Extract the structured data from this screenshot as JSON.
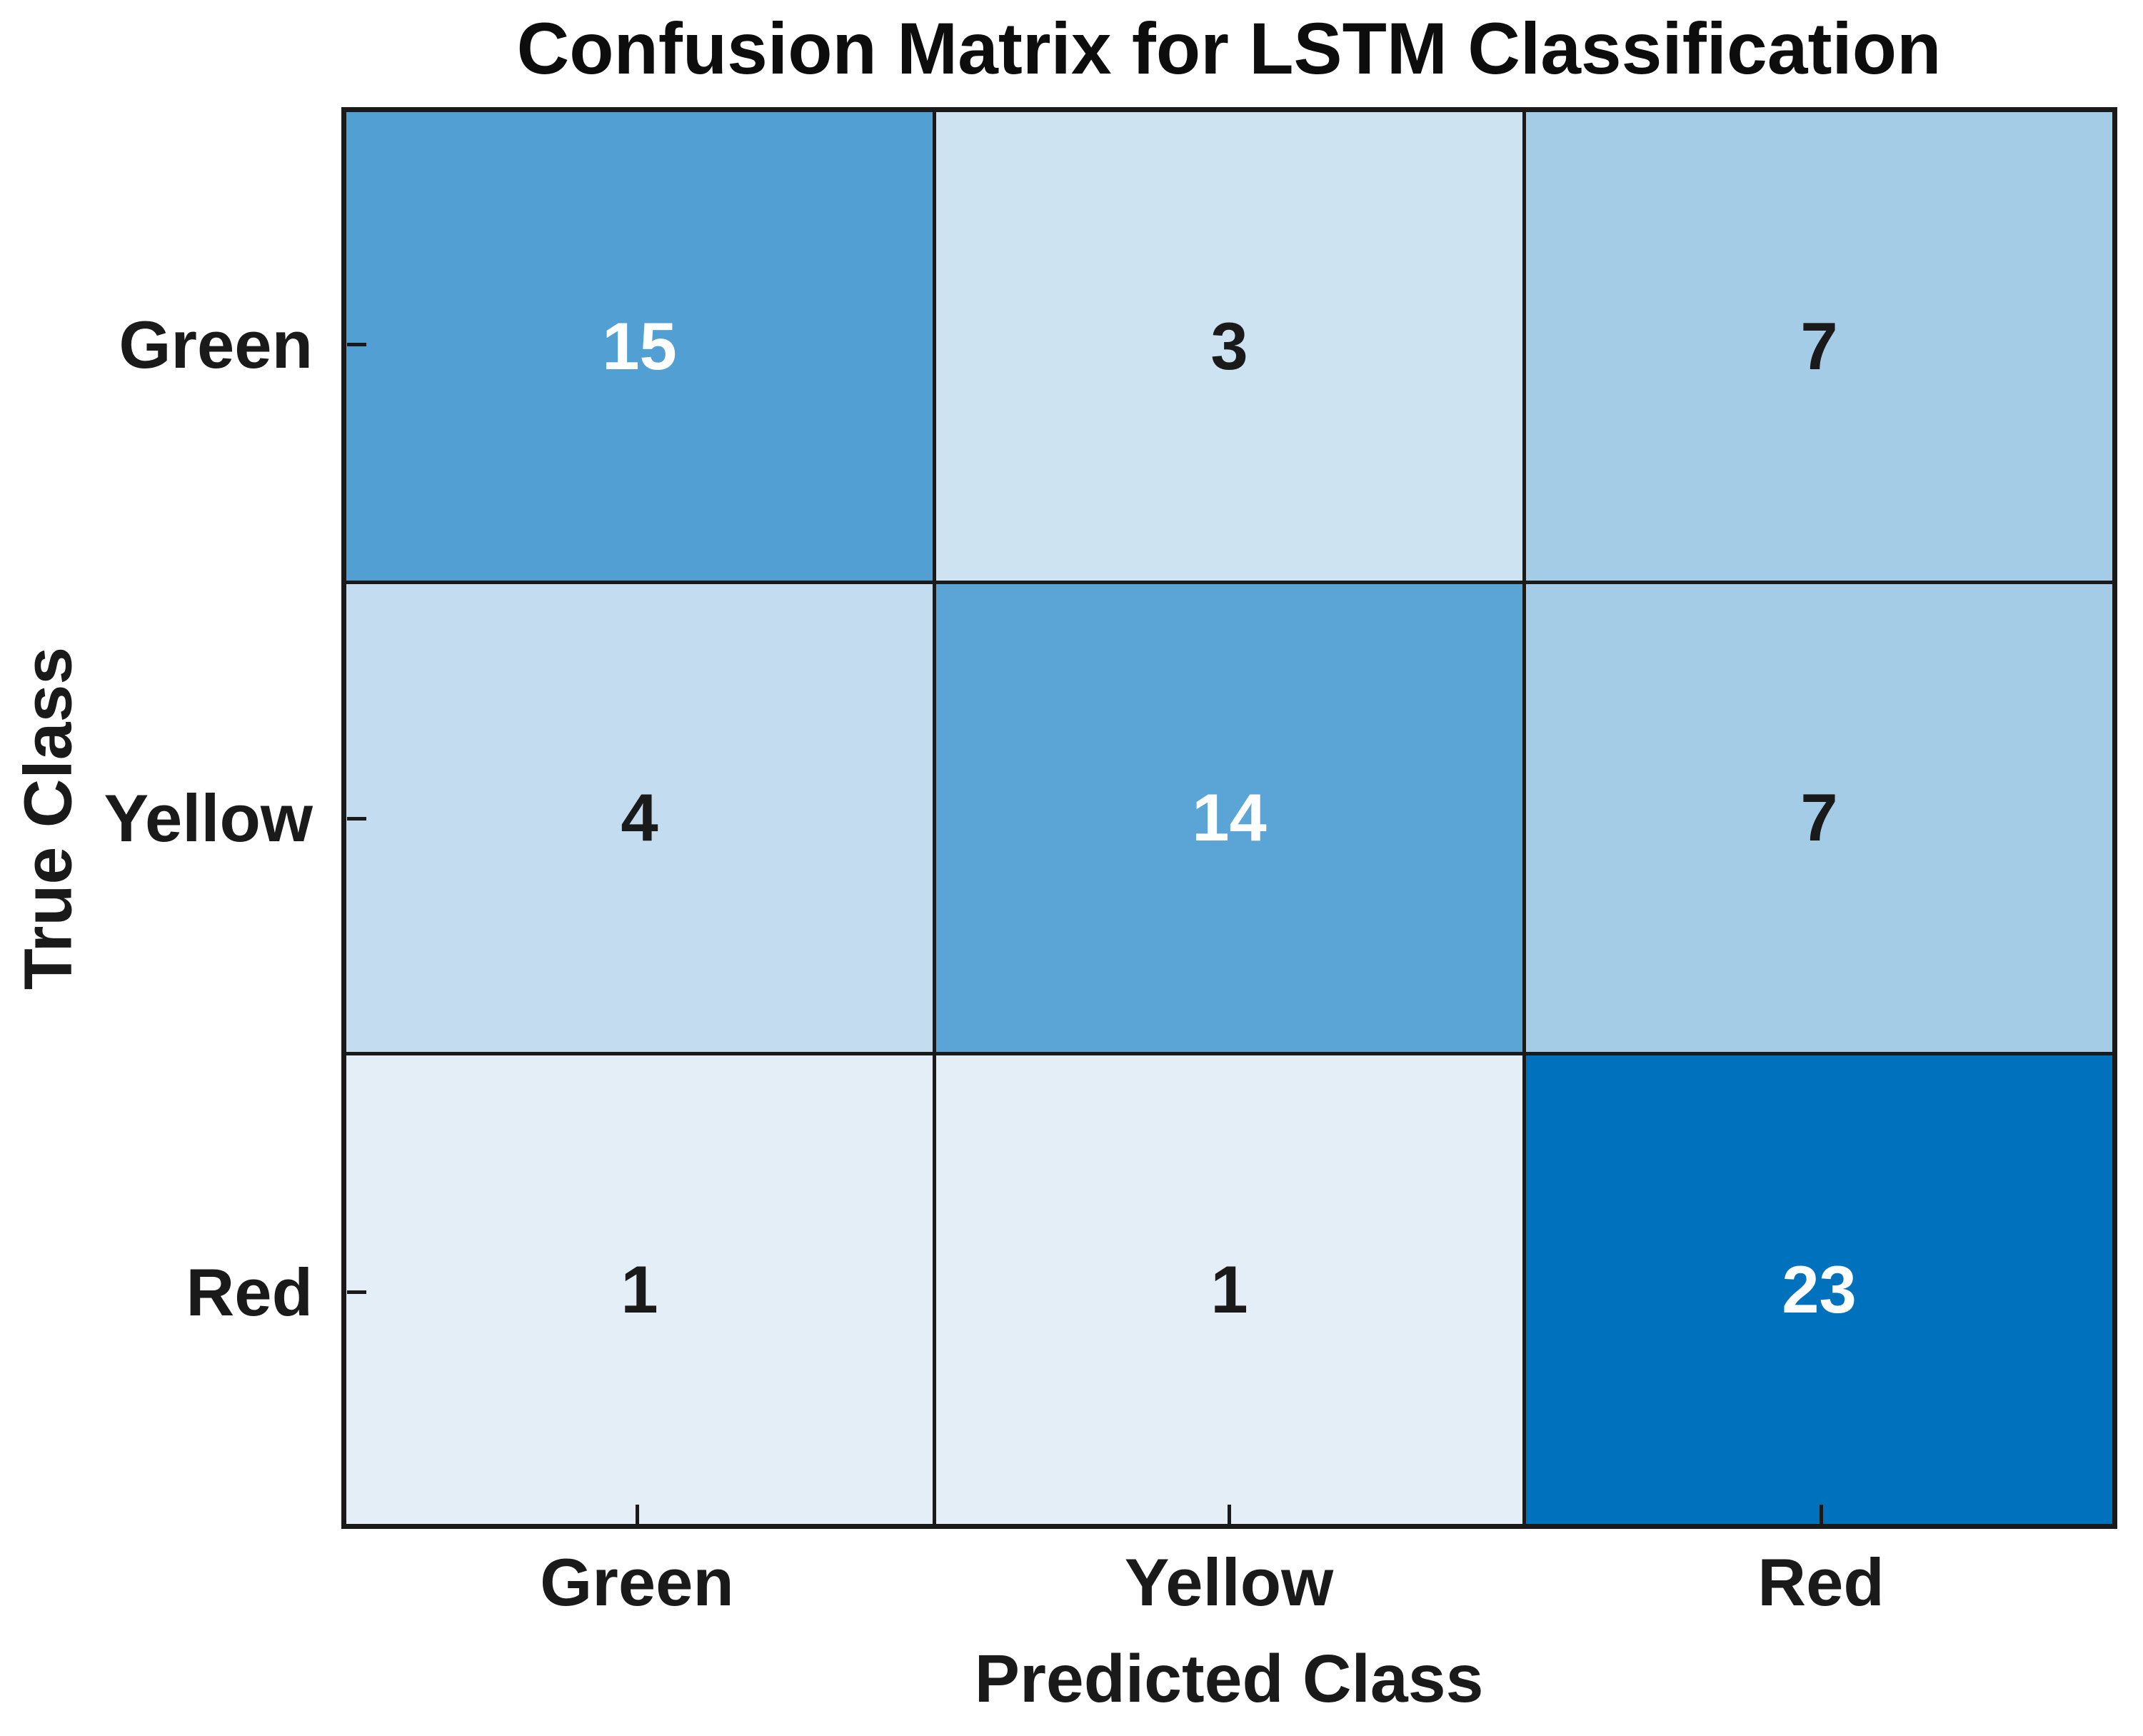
{
  "title": "Confusion Matrix for LSTM Classification",
  "axes": {
    "x_label": "Predicted Class",
    "y_label": "True Class",
    "x_ticks": [
      "Green",
      "Yellow",
      "Red"
    ],
    "y_ticks": [
      "Green",
      "Yellow",
      "Red"
    ]
  },
  "colors": {
    "frame": "#1a1a1a",
    "text": "#1a1a1a",
    "max_cell_blue": "#0072bd",
    "background": "#ffffff"
  },
  "chart_data": {
    "type": "heatmap",
    "title": "Confusion Matrix for LSTM Classification",
    "xlabel": "Predicted Class",
    "ylabel": "True Class",
    "x_categories": [
      "Green",
      "Yellow",
      "Red"
    ],
    "y_categories": [
      "Green",
      "Yellow",
      "Red"
    ],
    "matrix": [
      [
        15,
        3,
        7
      ],
      [
        4,
        14,
        7
      ],
      [
        1,
        1,
        23
      ]
    ],
    "value_range": [
      0,
      23
    ],
    "colormap": "white-to-blue",
    "grid": true,
    "legend": "none",
    "cells": [
      {
        "true_class": "Green",
        "predicted_class": "Green",
        "value": 15,
        "bg": "#519fd3",
        "fg": "#ffffff"
      },
      {
        "true_class": "Green",
        "predicted_class": "Yellow",
        "value": 3,
        "bg": "#cde3f2",
        "fg": "#1a1a1a"
      },
      {
        "true_class": "Green",
        "predicted_class": "Red",
        "value": 7,
        "bg": "#a4cce7",
        "fg": "#1a1a1a"
      },
      {
        "true_class": "Yellow",
        "predicted_class": "Green",
        "value": 4,
        "bg": "#c3dcf0",
        "fg": "#1a1a1a"
      },
      {
        "true_class": "Yellow",
        "predicted_class": "Yellow",
        "value": 14,
        "bg": "#5ba4d6",
        "fg": "#ffffff"
      },
      {
        "true_class": "Yellow",
        "predicted_class": "Red",
        "value": 7,
        "bg": "#a4cce7",
        "fg": "#1a1a1a"
      },
      {
        "true_class": "Red",
        "predicted_class": "Green",
        "value": 1,
        "bg": "#e4eef7",
        "fg": "#1a1a1a"
      },
      {
        "true_class": "Red",
        "predicted_class": "Yellow",
        "value": 1,
        "bg": "#e4eef7",
        "fg": "#1a1a1a"
      },
      {
        "true_class": "Red",
        "predicted_class": "Red",
        "value": 23,
        "bg": "#0072bd",
        "fg": "#ffffff"
      }
    ]
  }
}
